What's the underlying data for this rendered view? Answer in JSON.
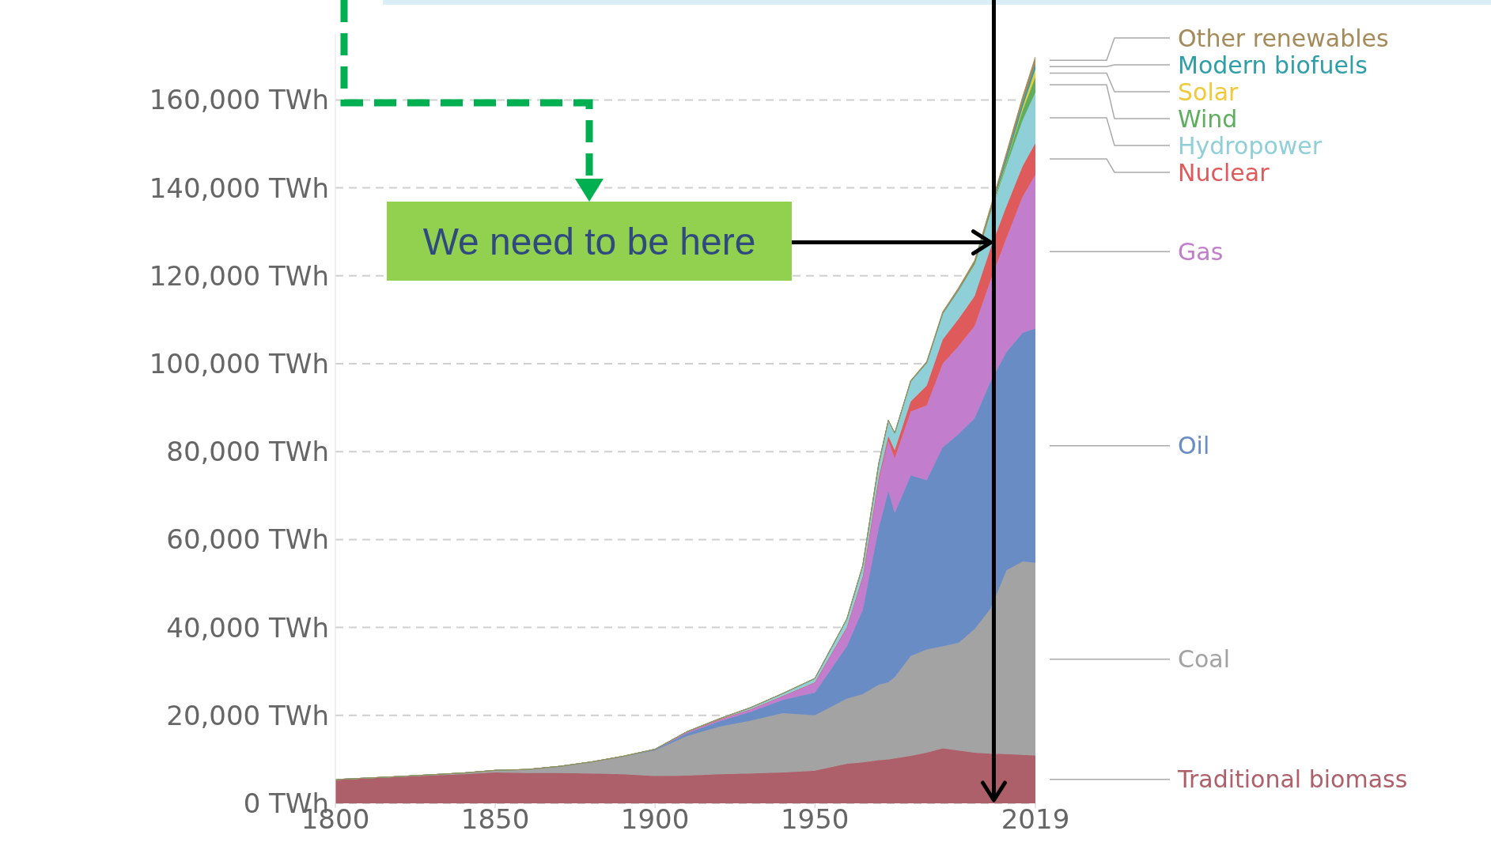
{
  "chart_data": {
    "type": "area",
    "stacked": true,
    "x": [
      1800,
      1820,
      1840,
      1850,
      1860,
      1870,
      1880,
      1890,
      1900,
      1910,
      1920,
      1930,
      1940,
      1950,
      1960,
      1965,
      1970,
      1973,
      1975,
      1980,
      1985,
      1990,
      1995,
      2000,
      2005,
      2010,
      2015,
      2019
    ],
    "series": [
      {
        "name": "Traditional biomass",
        "color": "#ad5f6a",
        "values": [
          5400,
          6000,
          6600,
          7000,
          6900,
          6900,
          6800,
          6600,
          6200,
          6300,
          6600,
          6800,
          7000,
          7400,
          9000,
          9300,
          9800,
          10000,
          10200,
          10800,
          11500,
          12500,
          12000,
          11500,
          11300,
          11200,
          11000,
          10900
        ]
      },
      {
        "name": "Coal",
        "color": "#a3a3a3",
        "values": [
          0,
          100,
          300,
          500,
          800,
          1500,
          2600,
          4000,
          5800,
          9000,
          10800,
          12000,
          13500,
          12600,
          14800,
          15500,
          17200,
          17500,
          18500,
          22700,
          23500,
          23200,
          24500,
          28100,
          33000,
          41800,
          44000,
          43800
        ]
      },
      {
        "name": "Oil",
        "color": "#6a8cc4",
        "values": [
          0,
          0,
          0,
          0,
          0,
          0,
          0,
          100,
          200,
          600,
          1200,
          2000,
          3000,
          5200,
          11900,
          19200,
          35700,
          43500,
          37300,
          41100,
          38500,
          45300,
          47500,
          48000,
          51700,
          49700,
          52000,
          53300
        ]
      },
      {
        "name": "Gas",
        "color": "#c27ecd",
        "values": [
          0,
          0,
          0,
          0,
          0,
          0,
          0,
          0,
          100,
          300,
          400,
          600,
          900,
          2300,
          4300,
          7500,
          10800,
          11500,
          12500,
          14500,
          17000,
          19000,
          20000,
          21000,
          23000,
          26000,
          31000,
          35000
        ]
      },
      {
        "name": "Nuclear",
        "color": "#df5a5a",
        "values": [
          0,
          0,
          0,
          0,
          0,
          0,
          0,
          0,
          0,
          0,
          0,
          0,
          0,
          0,
          0,
          100,
          600,
          1000,
          1800,
          2300,
          4500,
          5500,
          6200,
          6800,
          7300,
          7200,
          6900,
          7200
        ]
      },
      {
        "name": "Hydropower",
        "color": "#8fd0d8",
        "values": [
          0,
          0,
          0,
          0,
          0,
          0,
          0,
          0,
          0,
          100,
          200,
          400,
          600,
          900,
          1900,
          2500,
          3200,
          3600,
          3900,
          4600,
          5200,
          5900,
          6600,
          7200,
          8000,
          9200,
          10500,
          11500
        ]
      },
      {
        "name": "Wind",
        "color": "#5fae5f",
        "values": [
          0,
          0,
          0,
          0,
          0,
          0,
          0,
          0,
          0,
          0,
          0,
          0,
          0,
          0,
          0,
          0,
          0,
          0,
          0,
          0,
          0,
          0,
          0,
          100,
          300,
          1000,
          2200,
          3500
        ]
      },
      {
        "name": "Solar",
        "color": "#f0c93a",
        "values": [
          0,
          0,
          0,
          0,
          0,
          0,
          0,
          0,
          0,
          0,
          0,
          0,
          0,
          0,
          0,
          0,
          0,
          0,
          0,
          0,
          0,
          0,
          0,
          0,
          0,
          100,
          700,
          1800
        ]
      },
      {
        "name": "Modern biofuels",
        "color": "#2e9ea8",
        "values": [
          0,
          0,
          0,
          0,
          0,
          0,
          0,
          0,
          0,
          0,
          0,
          0,
          0,
          0,
          0,
          0,
          0,
          0,
          0,
          0,
          0,
          0,
          0,
          200,
          300,
          900,
          1100,
          1200
        ]
      },
      {
        "name": "Other renewables",
        "color": "#a58a5a",
        "values": [
          0,
          0,
          0,
          0,
          0,
          0,
          0,
          0,
          0,
          0,
          0,
          0,
          0,
          0,
          0,
          0,
          0,
          0,
          0,
          200,
          300,
          400,
          500,
          600,
          800,
          1000,
          1300,
          1600
        ]
      }
    ],
    "xlim": [
      1800,
      2019
    ],
    "xticks": [
      1800,
      1850,
      1900,
      1950,
      2019
    ],
    "ylim": [
      0,
      175000
    ],
    "yticks": [
      {
        "value": 0,
        "label": "0 TWh"
      },
      {
        "value": 20000,
        "label": "20,000 TWh"
      },
      {
        "value": 40000,
        "label": "40,000 TWh"
      },
      {
        "value": 60000,
        "label": "60,000 TWh"
      },
      {
        "value": 80000,
        "label": "80,000 TWh"
      },
      {
        "value": 100000,
        "label": "100,000 TWh"
      },
      {
        "value": 120000,
        "label": "120,000 TWh"
      },
      {
        "value": 140000,
        "label": "140,000 TWh"
      },
      {
        "value": 160000,
        "label": "160,000 TWh"
      }
    ],
    "grid": "y",
    "annotations": [
      {
        "text": "We need to be here",
        "x": 2006,
        "y": 127600
      }
    ],
    "ref_lines": [
      {
        "axis": "x",
        "value": 2006,
        "color": "#000000"
      }
    ]
  }
}
